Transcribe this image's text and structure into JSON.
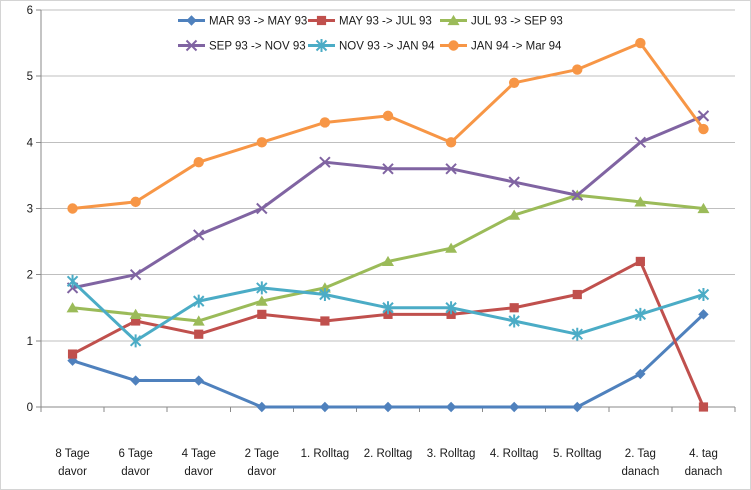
{
  "window": {
    "background": "#FFFFFF",
    "border_color": "#D4D4D4"
  },
  "chart_data": {
    "type": "line",
    "title": "",
    "categories": [
      "8 Tage davor",
      "6 Tage davor",
      "4 Tage davor",
      "2 Tage davor",
      "1. Rolltag",
      "2. Rolltag",
      "3. Rolltag",
      "4. Rolltag",
      "5. Rolltag",
      "2. Tag danach",
      "4. tag danach"
    ],
    "category_label_lines": [
      [
        "8 Tage",
        "davor"
      ],
      [
        "6 Tage",
        "davor"
      ],
      [
        "4 Tage",
        "davor"
      ],
      [
        "2 Tage",
        "davor"
      ],
      [
        "1. Rolltag"
      ],
      [
        "2. Rolltag"
      ],
      [
        "3. Rolltag"
      ],
      [
        "4. Rolltag"
      ],
      [
        "5. Rolltag"
      ],
      [
        "2. Tag",
        "danach"
      ],
      [
        "4. tag",
        "danach"
      ]
    ],
    "series": [
      {
        "name": "MAR 93 -> MAY 93",
        "marker": "diamond",
        "color": "#4F81BD",
        "values": [
          0.7,
          0.4,
          0.4,
          0.0,
          0.0,
          0.0,
          0.0,
          0.0,
          0.0,
          0.5,
          1.4
        ]
      },
      {
        "name": "MAY 93 -> JUL 93",
        "marker": "square",
        "color": "#C0504D",
        "values": [
          0.8,
          1.3,
          1.1,
          1.4,
          1.3,
          1.4,
          1.4,
          1.5,
          1.7,
          2.2,
          0.0
        ]
      },
      {
        "name": "JUL 93 -> SEP 93",
        "marker": "triangle",
        "color": "#9BBB59",
        "values": [
          1.5,
          1.4,
          1.3,
          1.6,
          1.8,
          2.2,
          2.4,
          2.9,
          3.2,
          3.1,
          3.0
        ]
      },
      {
        "name": "SEP 93 -> NOV 93",
        "marker": "x",
        "color": "#8064A2",
        "values": [
          1.8,
          2.0,
          2.6,
          3.0,
          3.7,
          3.6,
          3.6,
          3.4,
          3.2,
          4.0,
          4.4
        ]
      },
      {
        "name": "NOV 93 -> JAN 94",
        "marker": "star",
        "color": "#4BACC6",
        "values": [
          1.9,
          1.0,
          1.6,
          1.8,
          1.7,
          1.5,
          1.5,
          1.3,
          1.1,
          1.4,
          1.7
        ]
      },
      {
        "name": "JAN 94 -> Mar 94",
        "marker": "circle",
        "color": "#F79646",
        "values": [
          3.0,
          3.1,
          3.7,
          4.0,
          4.3,
          4.4,
          4.0,
          4.9,
          5.1,
          5.5,
          4.2
        ]
      }
    ],
    "ylim": [
      0,
      6
    ],
    "yticks": [
      "0",
      "1",
      "2",
      "3",
      "4",
      "5",
      "6"
    ],
    "grid": "horizontal-only",
    "legend_position": "top-two-rows",
    "legend_rows": [
      [
        0,
        1,
        2
      ],
      [
        3,
        4,
        5
      ]
    ],
    "axis_color": "#8A8A8A",
    "gridline_color": "#BFBFBF",
    "text_color": "#1A1A1A"
  }
}
